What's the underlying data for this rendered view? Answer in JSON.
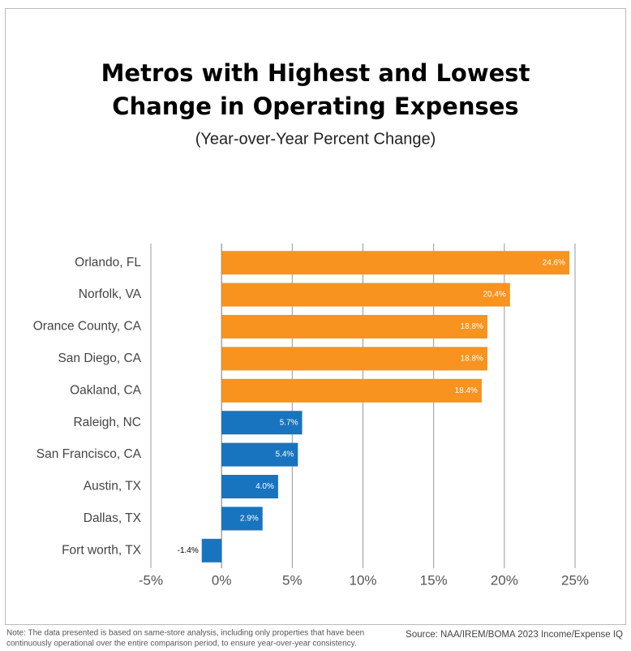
{
  "chart_data": {
    "type": "hbar",
    "title": [
      "Metros with Highest and Lowest",
      "Change in Operating Expenses"
    ],
    "subtitle": "(Year-over-Year Percent Change)",
    "categories": [
      "Orlando, FL",
      "Norfolk, VA",
      "Orance County, CA",
      "San Diego, CA",
      "Oakland, CA",
      "Raleigh, NC",
      "San Francisco, CA",
      "Austin, TX",
      "Dallas, TX",
      "Fort worth, TX"
    ],
    "values": [
      24.6,
      20.4,
      18.8,
      18.8,
      18.4,
      5.7,
      5.4,
      4.0,
      2.9,
      -1.4
    ],
    "value_labels": [
      "24.6%",
      "20.4%",
      "18.8%",
      "18.8%",
      "18.4%",
      "5.7%",
      "5.4%",
      "4.0%",
      "2.9%",
      "-1.4%"
    ],
    "colors": [
      "#f7931e",
      "#f7931e",
      "#f7931e",
      "#f7931e",
      "#f7931e",
      "#1874be",
      "#1874be",
      "#1874be",
      "#1874be",
      "#1874be"
    ],
    "xlim": [
      -5,
      25
    ],
    "xticks": [
      {
        "value": -5,
        "label": "-5%"
      },
      {
        "value": 0,
        "label": "0%"
      },
      {
        "value": 5,
        "label": "5%"
      },
      {
        "value": 10,
        "label": "10%"
      },
      {
        "value": 15,
        "label": "15%"
      },
      {
        "value": 20,
        "label": "20%"
      },
      {
        "value": 25,
        "label": "25%"
      }
    ],
    "grid": true,
    "note": [
      "Note: The data presented is based on same-store analysis, including only properties that have been",
      "continuously operational over the entire comparison period, to ensure year-over-year consistency."
    ],
    "source": "Source:  NAA/IREM/BOMA 2023 Income/Expense IQ"
  }
}
